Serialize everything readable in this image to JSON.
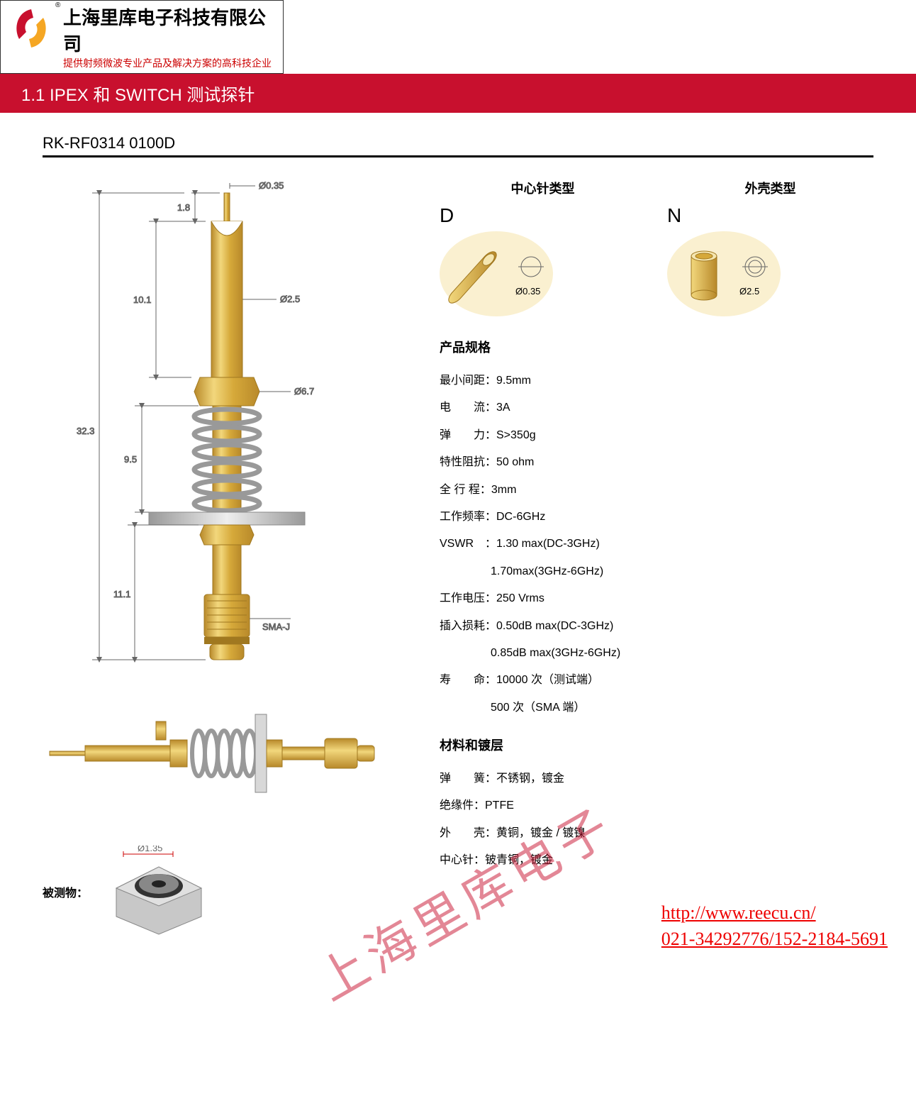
{
  "header": {
    "company": "上海里库电子科技有限公司",
    "tagline": "提供射频微波专业产品及解决方案的高科技企业",
    "trademark": "®"
  },
  "section_bar": "1.1 IPEX 和 SWITCH 测试探针",
  "product_code": "RK-RF0314  0100D",
  "diagram": {
    "dims": {
      "tip_d": "Ø0.35",
      "tip_h": "1.8",
      "shaft_h": "10.1",
      "shaft_d": "Ø2.5",
      "hex_d": "Ø6.7",
      "spring_h": "9.5",
      "bottom_h": "11.1",
      "total_h": "32.3",
      "connector": "SMA-J"
    },
    "colors": {
      "gold": "#d6a93a",
      "gold_light": "#f2d77c",
      "gold_dark": "#b8892a",
      "spring": "#bfbfbf",
      "flange": "#d8d8d8",
      "dim_line": "#808080",
      "bg_circle": "#faf0d0"
    },
    "dut": {
      "label": "被测物：",
      "dim": "Ø1.35"
    }
  },
  "types": {
    "center": {
      "title": "中心针类型",
      "letter": "D",
      "dim": "Ø0.35"
    },
    "shell": {
      "title": "外壳类型",
      "letter": "N",
      "dim": "Ø2.5"
    }
  },
  "specs": {
    "title": "产品规格",
    "items": [
      {
        "label": "最小间距",
        "value": "9.5mm"
      },
      {
        "label": "电　　流",
        "value": "3A"
      },
      {
        "label": "弹　　力",
        "value": "S>350g"
      },
      {
        "label": "特性阻抗",
        "value": "50 ohm"
      },
      {
        "label": "全 行 程",
        "value": "3mm"
      },
      {
        "label": "工作频率",
        "value": "DC-6GHz"
      },
      {
        "label": "VSWR　",
        "value": "1.30 max(DC-3GHz)"
      },
      {
        "label": "",
        "value": "1.70max(3GHz-6GHz)",
        "indent": true
      },
      {
        "label": "工作电压",
        "value": "250 Vrms"
      },
      {
        "label": "插入损耗",
        "value": "0.50dB max(DC-3GHz)"
      },
      {
        "label": "",
        "value": "0.85dB max(3GHz-6GHz)",
        "indent": true
      },
      {
        "label": "寿　　命",
        "value": "10000 次（测试端）"
      },
      {
        "label": "",
        "value": "500 次（SMA 端）",
        "indent": true
      }
    ]
  },
  "materials": {
    "title": "材料和镀层",
    "items": [
      {
        "label": "弹　　簧",
        "value": "不锈钢，镀金"
      },
      {
        "label": "绝缘件",
        "value": "PTFE"
      },
      {
        "label": "外　　壳",
        "value": "黄铜，镀金 / 镀镍"
      },
      {
        "label": "中心针",
        "value": "铍青铜，镀金"
      }
    ]
  },
  "watermark": "上海里库电子",
  "footer": {
    "url": "http://www.reecu.cn/",
    "phone": "021-34292776/152-2184-5691"
  }
}
